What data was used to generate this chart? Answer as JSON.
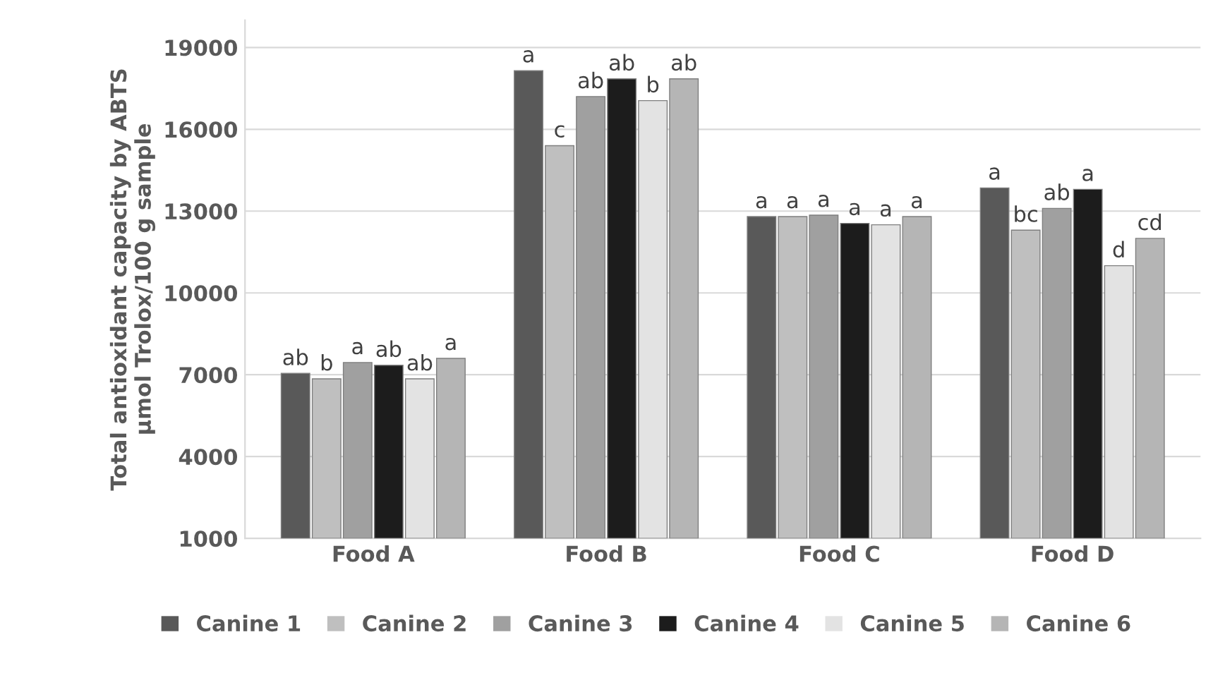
{
  "chart_data": {
    "type": "bar",
    "ylabel": "Total antioxidant capacity by ABTS\nµmol Trolox/100 g sample",
    "categories": [
      "Food A",
      "Food B",
      "Food C",
      "Food D"
    ],
    "series": [
      {
        "name": "Canine 1",
        "color": "#595959",
        "values": [
          7050,
          18150,
          12800,
          13850
        ],
        "value_labels": [
          "ab",
          "a",
          "a",
          "a"
        ]
      },
      {
        "name": "Canine 2",
        "color": "#bfbfbf",
        "values": [
          6850,
          15400,
          12800,
          12300
        ],
        "value_labels": [
          "b",
          "c",
          "a",
          "bc"
        ]
      },
      {
        "name": "Canine 3",
        "color": "#a0a0a0",
        "values": [
          7450,
          17200,
          12850,
          13100
        ],
        "value_labels": [
          "a",
          "ab",
          "a",
          "ab"
        ]
      },
      {
        "name": "Canine 4",
        "color": "#1c1c1c",
        "values": [
          7350,
          17850,
          12550,
          13800
        ],
        "value_labels": [
          "ab",
          "ab",
          "a",
          "a"
        ]
      },
      {
        "name": "Canine 5",
        "color": "#e3e3e3",
        "values": [
          6850,
          17050,
          12500,
          11000
        ],
        "value_labels": [
          "ab",
          "b",
          "a",
          "d"
        ]
      },
      {
        "name": "Canine 6",
        "color": "#b5b5b5",
        "values": [
          7600,
          17850,
          12800,
          12000
        ],
        "value_labels": [
          "a",
          "ab",
          "a",
          "cd"
        ]
      }
    ],
    "ylim": [
      1000,
      20000
    ],
    "yticks": [
      1000,
      4000,
      7000,
      10000,
      13000,
      16000,
      19000
    ],
    "grid": "y",
    "legend": "bottom"
  }
}
